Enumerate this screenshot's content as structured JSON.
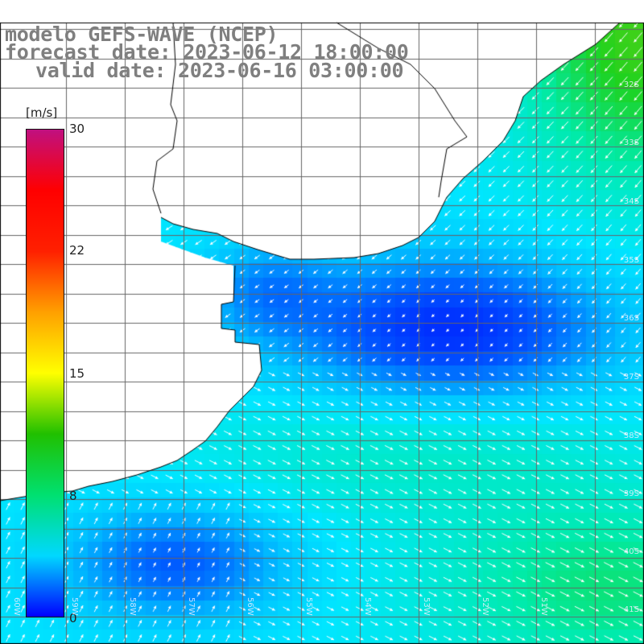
{
  "title": {
    "line1": "modelo GEFS-WAVE (NCEP)",
    "line2": "forecast date: 2023-06-12 18:00:00",
    "line3": "valid date: 2023-06-16 03:00:00"
  },
  "colorbar": {
    "unit": "[m/s]",
    "ticks": [
      "30",
      "22",
      "15",
      "8",
      "0"
    ],
    "tick_values": [
      30,
      22,
      15,
      8,
      0
    ],
    "range": [
      0,
      30
    ],
    "colors": [
      "#0000ff",
      "#00d8ff",
      "#00e070",
      "#20c000",
      "#ffff00",
      "#ffa000",
      "#ff2000",
      "#ff0000",
      "#c01080"
    ]
  },
  "map": {
    "variable": "wind speed and direction",
    "land_color": "#ffffff",
    "coast_color": "#000000",
    "grid_color": "#555555",
    "lat_labels": [
      "32S",
      "33S",
      "34S",
      "35S",
      "36S",
      "37S",
      "38S",
      "39S",
      "40S",
      "41S"
    ],
    "lon_labels": [
      "60W",
      "59W",
      "58W",
      "57W",
      "56W",
      "55W",
      "54W",
      "53W",
      "52W",
      "51W"
    ]
  }
}
